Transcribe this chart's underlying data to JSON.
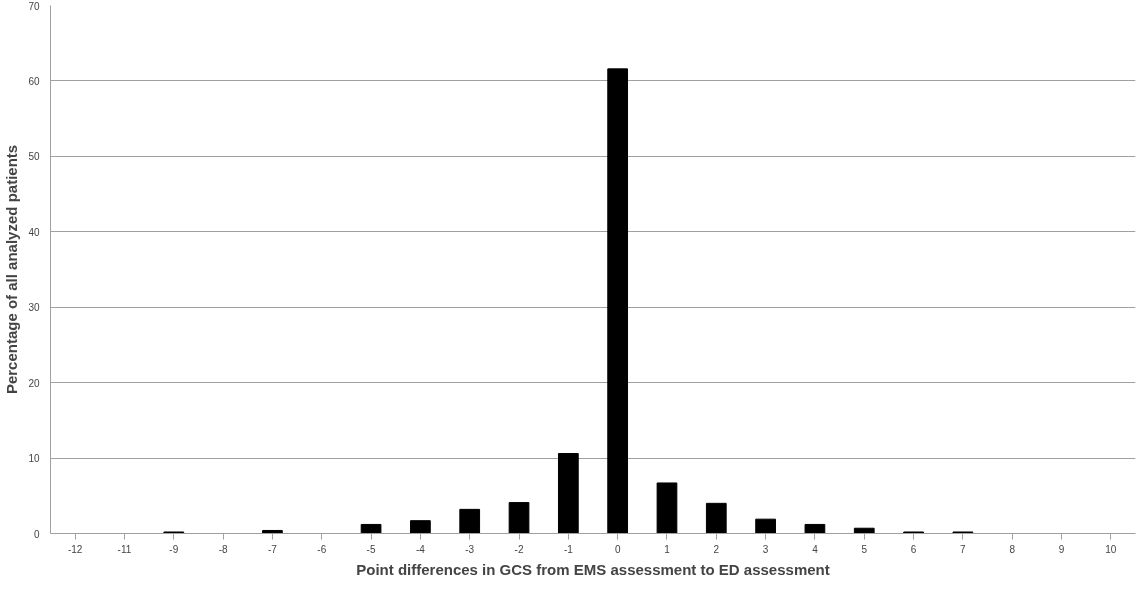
{
  "chart_data": {
    "type": "bar",
    "xlabel": "Point differences in GCS from EMS assessment to ED assessment",
    "ylabel": "Percentage of all analyzed patients",
    "categories": [
      "-12",
      "-11",
      "-9",
      "-8",
      "-7",
      "-6",
      "-5",
      "-4",
      "-3",
      "-2",
      "-1",
      "0",
      "1",
      "2",
      "3",
      "4",
      "5",
      "6",
      "7",
      "8",
      "9",
      "10"
    ],
    "values": [
      0,
      0,
      0.2,
      0,
      0.4,
      0,
      1.2,
      1.7,
      3.2,
      4.1,
      10.6,
      61.6,
      6.7,
      4.0,
      1.9,
      1.2,
      0.7,
      0.2,
      0.2,
      0,
      0,
      0
    ],
    "color": "#000000",
    "ylim": [
      0,
      70
    ],
    "yticks": [
      0,
      10,
      20,
      30,
      40,
      50,
      60,
      70
    ],
    "grid": "y"
  }
}
